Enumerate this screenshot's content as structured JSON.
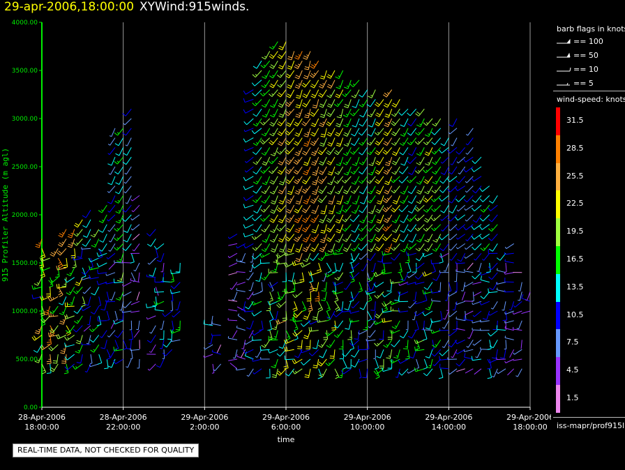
{
  "title": {
    "date": "29-apr-2006,18:00:00",
    "name": "XYWind:915winds."
  },
  "notice": "REAL-TIME DATA, NOT CHECKED FOR QUALITY",
  "legend": {
    "flags_header": "barb flags in knots",
    "flags": [
      "== 100",
      "== 50",
      "== 10",
      "== 5"
    ],
    "speed_header": "wind-speed: knots",
    "speed_labels": [
      "31.5",
      "28.5",
      "25.5",
      "22.5",
      "19.5",
      "16.5",
      "13.5",
      "10.5",
      "7.5",
      "4.5",
      "1.5"
    ],
    "speed_colors": [
      "#ff0000",
      "#ff8000",
      "#ffb040",
      "#ffff00",
      "#a0ff40",
      "#00ff00",
      "#00ffff",
      "#0000ff",
      "#6699ff",
      "#9933ff",
      "#ee88ee"
    ],
    "source_id": "iss-mapr/prof915l"
  },
  "chart_data": {
    "type": "scatter",
    "subtype": "wind barbs",
    "title": "",
    "xlabel": "time",
    "ylabel": "915 Profiler Altitude (m agl)",
    "ylim": [
      0,
      4000
    ],
    "yticks": [
      "0.00",
      "500.00",
      "1000.00",
      "1500.00",
      "2000.00",
      "2500.00",
      "3000.00",
      "3500.00",
      "4000.00"
    ],
    "x_start": "28-Apr-2006 18:00:00",
    "x_end": "29-Apr-2006 18:00:00",
    "xticks": [
      {
        "date": "28-Apr-2006",
        "time": "18:00:00"
      },
      {
        "date": "28-Apr-2006",
        "time": "22:00:00"
      },
      {
        "date": "29-Apr-2006",
        "time": "2:00:00"
      },
      {
        "date": "29-Apr-2006",
        "time": "6:00:00"
      },
      {
        "date": "29-Apr-2006",
        "time": "10:00:00"
      },
      {
        "date": "29-Apr-2006",
        "time": "14:00:00"
      },
      {
        "date": "29-Apr-2006",
        "time": "18:00:00"
      }
    ],
    "grid": "vertical",
    "columns": [
      {
        "time": "28-Apr-2006 18:00:00",
        "heights": [
          450,
          1750
        ],
        "speed": 26,
        "dir": 200
      },
      {
        "time": "28-Apr-2006 18:24:00",
        "heights": [
          450,
          1600
        ],
        "speed": 30,
        "dir": 205
      },
      {
        "time": "28-Apr-2006 18:48:00",
        "heights": [
          450,
          1700
        ],
        "speed": 28,
        "dir": 205
      },
      {
        "time": "28-Apr-2006 19:12:00",
        "heights": [
          450,
          1900
        ],
        "speed": 26,
        "dir": 210
      },
      {
        "time": "28-Apr-2006 19:36:00",
        "heights": [
          450,
          1850
        ],
        "speed": 25,
        "dir": 210
      },
      {
        "time": "28-Apr-2006 20:00:00",
        "heights": [
          450,
          2000
        ],
        "speed": 20,
        "dir": 215
      },
      {
        "time": "28-Apr-2006 20:24:00",
        "heights": [
          450,
          2100
        ],
        "speed": 12,
        "dir": 215
      },
      {
        "time": "28-Apr-2006 20:48:00",
        "heights": [
          450,
          1900
        ],
        "speed": 18,
        "dir": 215
      },
      {
        "time": "28-Apr-2006 21:12:00",
        "heights": [
          500,
          2100
        ],
        "speed": 14,
        "dir": 215
      },
      {
        "time": "28-Apr-2006 21:36:00",
        "heights": [
          500,
          2900
        ],
        "speed": 11,
        "dir": 215
      },
      {
        "time": "28-Apr-2006 22:00:00",
        "heights": [
          500,
          2900
        ],
        "speed": 16,
        "dir": 215
      },
      {
        "time": "28-Apr-2006 22:24:00",
        "heights": [
          500,
          3100
        ],
        "speed": 11,
        "dir": 215
      },
      {
        "time": "28-Apr-2006 22:48:00",
        "heights": [
          500,
          2200
        ],
        "speed": 5,
        "dir": 225
      },
      {
        "time": "28-Apr-2006 23:36:00",
        "heights": [
          450,
          1900
        ],
        "speed": 11,
        "dir": 220
      },
      {
        "time": "29-Apr-2006 00:00:00",
        "heights": [
          500,
          1700
        ],
        "speed": 14,
        "dir": 220
      },
      {
        "time": "29-Apr-2006 00:24:00",
        "heights": [
          600,
          1400
        ],
        "speed": 17,
        "dir": 220
      },
      {
        "time": "29-Apr-2006 00:48:00",
        "heights": [
          700,
          1500
        ],
        "speed": 18,
        "dir": 215
      },
      {
        "time": "29-Apr-2006 02:24:00",
        "heights": [
          450,
          1000
        ],
        "speed": 11,
        "dir": 230
      },
      {
        "time": "29-Apr-2006 02:48:00",
        "heights": [
          450,
          900
        ],
        "speed": 8,
        "dir": 240
      },
      {
        "time": "29-Apr-2006 03:36:00",
        "heights": [
          400,
          1800
        ],
        "speed": 7,
        "dir": 250
      },
      {
        "time": "29-Apr-2006 04:00:00",
        "heights": [
          400,
          1700
        ],
        "speed": 8,
        "dir": 250
      },
      {
        "time": "29-Apr-2006 04:24:00",
        "heights": [
          400,
          3300
        ],
        "speed": 12,
        "dir": 240
      },
      {
        "time": "29-Apr-2006 04:48:00",
        "heights": [
          400,
          3600
        ],
        "speed": 16,
        "dir": 220
      },
      {
        "time": "29-Apr-2006 05:12:00",
        "heights": [
          400,
          3700
        ],
        "speed": 18,
        "dir": 215
      },
      {
        "time": "29-Apr-2006 05:36:00",
        "heights": [
          400,
          3800
        ],
        "speed": 20,
        "dir": 210
      },
      {
        "time": "29-Apr-2006 06:00:00",
        "heights": [
          400,
          3800
        ],
        "speed": 22,
        "dir": 210
      },
      {
        "time": "29-Apr-2006 06:24:00",
        "heights": [
          400,
          3700
        ],
        "speed": 24,
        "dir": 210
      },
      {
        "time": "29-Apr-2006 06:48:00",
        "heights": [
          400,
          3700
        ],
        "speed": 25,
        "dir": 205
      },
      {
        "time": "29-Apr-2006 07:12:00",
        "heights": [
          400,
          3700
        ],
        "speed": 26,
        "dir": 205
      },
      {
        "time": "29-Apr-2006 07:36:00",
        "heights": [
          400,
          3600
        ],
        "speed": 25,
        "dir": 205
      },
      {
        "time": "29-Apr-2006 08:00:00",
        "heights": [
          400,
          3500
        ],
        "speed": 23,
        "dir": 205
      },
      {
        "time": "29-Apr-2006 08:24:00",
        "heights": [
          400,
          3500
        ],
        "speed": 22,
        "dir": 205
      },
      {
        "time": "29-Apr-2006 08:48:00",
        "heights": [
          400,
          3500
        ],
        "speed": 20,
        "dir": 205
      },
      {
        "time": "29-Apr-2006 09:12:00",
        "heights": [
          400,
          3400
        ],
        "speed": 18,
        "dir": 210
      },
      {
        "time": "29-Apr-2006 09:36:00",
        "heights": [
          400,
          3400
        ],
        "speed": 16,
        "dir": 210
      },
      {
        "time": "29-Apr-2006 10:00:00",
        "heights": [
          400,
          3300
        ],
        "speed": 15,
        "dir": 210
      },
      {
        "time": "29-Apr-2006 10:24:00",
        "heights": [
          400,
          3300
        ],
        "speed": 17,
        "dir": 210
      },
      {
        "time": "29-Apr-2006 10:48:00",
        "heights": [
          400,
          3200
        ],
        "speed": 22,
        "dir": 210
      },
      {
        "time": "29-Apr-2006 11:12:00",
        "heights": [
          400,
          3300
        ],
        "speed": 25,
        "dir": 210
      },
      {
        "time": "29-Apr-2006 11:36:00",
        "heights": [
          400,
          3200
        ],
        "speed": 20,
        "dir": 215
      },
      {
        "time": "29-Apr-2006 12:00:00",
        "heights": [
          400,
          3100
        ],
        "speed": 15,
        "dir": 215
      },
      {
        "time": "29-Apr-2006 12:24:00",
        "heights": [
          400,
          3100
        ],
        "speed": 14,
        "dir": 215
      },
      {
        "time": "29-Apr-2006 12:48:00",
        "heights": [
          400,
          3100
        ],
        "speed": 18,
        "dir": 215
      },
      {
        "time": "29-Apr-2006 13:12:00",
        "heights": [
          400,
          3000
        ],
        "speed": 20,
        "dir": 215
      },
      {
        "time": "29-Apr-2006 13:36:00",
        "heights": [
          400,
          3000
        ],
        "speed": 16,
        "dir": 215
      },
      {
        "time": "29-Apr-2006 14:00:00",
        "heights": [
          400,
          2800
        ],
        "speed": 12,
        "dir": 220
      },
      {
        "time": "29-Apr-2006 14:24:00",
        "heights": [
          400,
          3000
        ],
        "speed": 11,
        "dir": 220
      },
      {
        "time": "29-Apr-2006 14:48:00",
        "heights": [
          400,
          2700
        ],
        "speed": 10,
        "dir": 225
      },
      {
        "time": "29-Apr-2006 15:12:00",
        "heights": [
          400,
          2900
        ],
        "speed": 9,
        "dir": 225
      },
      {
        "time": "29-Apr-2006 15:36:00",
        "heights": [
          400,
          2600
        ],
        "speed": 12,
        "dir": 225
      },
      {
        "time": "29-Apr-2006 16:00:00",
        "heights": [
          400,
          2300
        ],
        "speed": 15,
        "dir": 225
      },
      {
        "time": "29-Apr-2006 16:24:00",
        "heights": [
          400,
          2200
        ],
        "speed": 14,
        "dir": 225
      },
      {
        "time": "29-Apr-2006 16:48:00",
        "heights": [
          400,
          1600
        ],
        "speed": 11,
        "dir": 230
      },
      {
        "time": "29-Apr-2006 17:12:00",
        "heights": [
          400,
          1700
        ],
        "speed": 10,
        "dir": 230
      },
      {
        "time": "29-Apr-2006 17:36:00",
        "heights": [
          400,
          1400
        ],
        "speed": 8,
        "dir": 240
      },
      {
        "time": "29-Apr-2006 18:00:00",
        "heights": [
          1000,
          1200
        ],
        "speed": 10,
        "dir": 250
      }
    ]
  }
}
